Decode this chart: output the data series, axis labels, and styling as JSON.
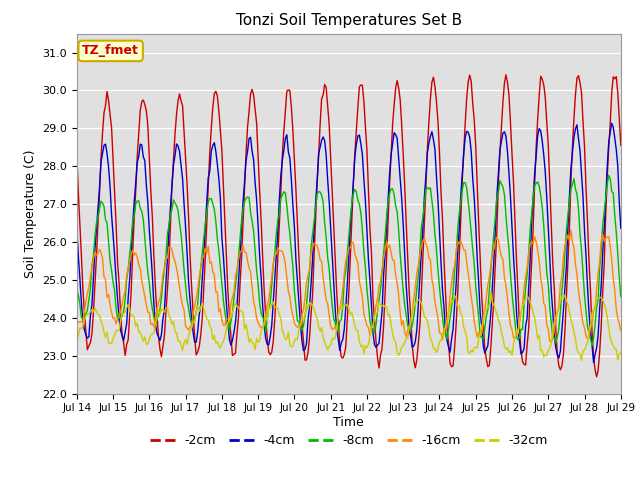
{
  "title": "Tonzi Soil Temperatures Set B",
  "xlabel": "Time",
  "ylabel": "Soil Temperature (C)",
  "ylim": [
    22.0,
    31.5
  ],
  "xlim": [
    0,
    360
  ],
  "bg_color": "#e0e0e0",
  "fig_color": "#ffffff",
  "annotation_text": "TZ_fmet",
  "annotation_bg": "#ffffcc",
  "annotation_border": "#ccaa00",
  "series": [
    {
      "label": "-2cm",
      "color": "#cc0000",
      "amp_start": 3.3,
      "amp_end": 4.0,
      "base": 26.5,
      "phase_hours": 0.0,
      "period": 24
    },
    {
      "label": "-4cm",
      "color": "#0000cc",
      "amp_start": 2.5,
      "amp_end": 3.1,
      "base": 26.0,
      "phase_hours": 1.5,
      "period": 24
    },
    {
      "label": "-8cm",
      "color": "#00bb00",
      "amp_start": 1.5,
      "amp_end": 2.2,
      "base": 25.5,
      "phase_hours": 3.5,
      "period": 24
    },
    {
      "label": "-16cm",
      "color": "#ff8800",
      "amp_start": 0.9,
      "amp_end": 1.4,
      "base": 24.8,
      "phase_hours": 6.0,
      "period": 24
    },
    {
      "label": "-32cm",
      "color": "#cccc00",
      "amp_start": 0.4,
      "amp_end": 0.8,
      "base": 23.8,
      "phase_hours": 10.0,
      "period": 24
    }
  ],
  "x_tick_labels": [
    "Jul 14",
    "Jul 15",
    "Jul 16",
    "Jul 17",
    "Jul 18",
    "Jul 19",
    "Jul 20",
    "Jul 21",
    "Jul 22",
    "Jul 23",
    "Jul 24",
    "Jul 25",
    "Jul 26",
    "Jul 27",
    "Jul 28",
    "Jul 29"
  ],
  "x_tick_positions": [
    0,
    24,
    48,
    72,
    96,
    120,
    144,
    168,
    192,
    216,
    240,
    264,
    288,
    312,
    336,
    360
  ]
}
